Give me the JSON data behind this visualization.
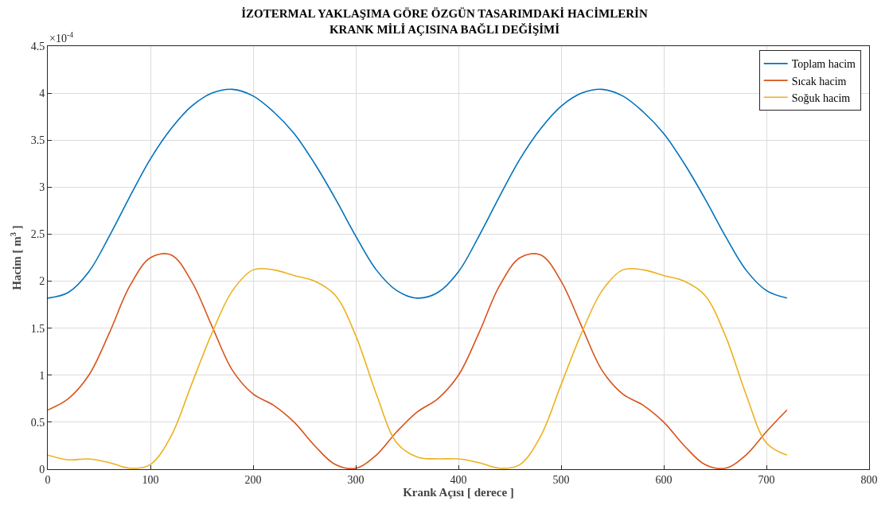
{
  "chart_data": {
    "type": "line",
    "title": "İZOTERMAL YAKLAŞIMA GÖRE ÖZGÜN TASARIMDAKİ HACİMLERİN\nKRANK MİLİ AÇISINA BAĞLI DEĞİŞİMİ",
    "xlabel": "Krank Açısı [ derece ]",
    "ylabel": "Hacim [ m$^{3}$ ]",
    "annotations": [
      "×10$^{-4}$"
    ],
    "x": [
      0,
      20,
      40,
      60,
      80,
      100,
      120,
      140,
      160,
      180,
      200,
      220,
      240,
      260,
      280,
      300,
      320,
      340,
      360,
      380,
      400,
      420,
      440,
      460,
      480,
      500,
      520,
      540,
      560,
      580,
      600,
      620,
      640,
      660,
      680,
      700,
      720
    ],
    "series": [
      {
        "name": "Toplam hacim",
        "color": "#0072bd",
        "values": [
          1.82,
          1.88,
          2.1,
          2.48,
          2.9,
          3.3,
          3.62,
          3.86,
          4.0,
          4.04,
          3.97,
          3.8,
          3.57,
          3.25,
          2.88,
          2.48,
          2.12,
          1.9,
          1.82,
          1.88,
          2.1,
          2.48,
          2.9,
          3.3,
          3.62,
          3.86,
          4.0,
          4.04,
          3.97,
          3.8,
          3.57,
          3.25,
          2.88,
          2.48,
          2.12,
          1.9,
          1.82
        ]
      },
      {
        "name": "Sıcak hacim",
        "color": "#d95319",
        "values": [
          0.63,
          0.75,
          1.0,
          1.45,
          1.95,
          2.25,
          2.28,
          2.0,
          1.52,
          1.05,
          0.8,
          0.68,
          0.5,
          0.25,
          0.05,
          0.01,
          0.15,
          0.4,
          0.61,
          0.75,
          1.0,
          1.45,
          1.95,
          2.25,
          2.28,
          2.0,
          1.52,
          1.05,
          0.8,
          0.68,
          0.5,
          0.25,
          0.05,
          0.01,
          0.15,
          0.4,
          0.63
        ]
      },
      {
        "name": "Soğuk hacim",
        "color": "#edb120",
        "values": [
          0.15,
          0.1,
          0.11,
          0.07,
          0.01,
          0.05,
          0.35,
          0.9,
          1.45,
          1.9,
          2.12,
          2.12,
          2.06,
          2.0,
          1.85,
          1.42,
          0.8,
          0.28,
          0.13,
          0.11,
          0.11,
          0.07,
          0.01,
          0.05,
          0.35,
          0.9,
          1.45,
          1.9,
          2.12,
          2.12,
          2.06,
          2.0,
          1.85,
          1.42,
          0.8,
          0.28,
          0.15
        ]
      }
    ],
    "xlim": [
      0,
      800
    ],
    "xticks": [
      0,
      100,
      200,
      300,
      400,
      500,
      600,
      700,
      800
    ],
    "ylim": [
      0,
      4.5
    ],
    "yticks": [
      0,
      0.5,
      1,
      1.5,
      2,
      2.5,
      3,
      3.5,
      4,
      4.5
    ],
    "grid": true,
    "legend": "top right",
    "marker": "none",
    "line_style": "solid"
  }
}
